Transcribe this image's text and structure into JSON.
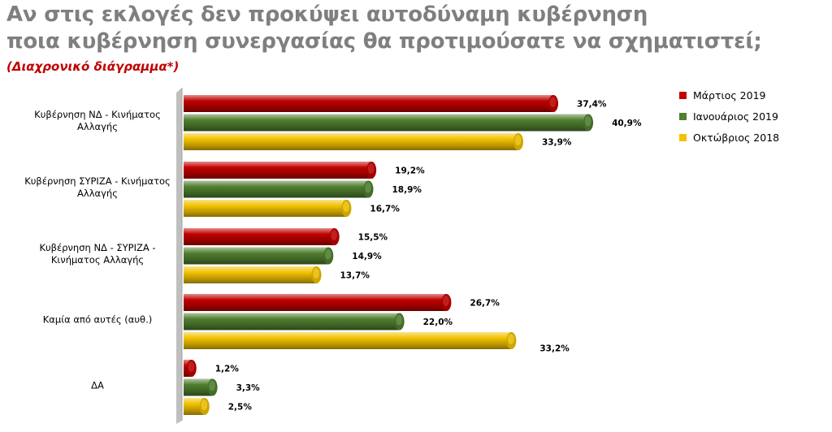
{
  "header": {
    "title_line1": "Αν στις εκλογές δεν προκύψει αυτοδύναμη κυβέρνηση",
    "title_line2": "ποια κυβέρνηση συνεργασίας θα προτιμούσατε να σχηματιστεί;",
    "subtitle": "(Διαχρονικό διάγραμμα*)"
  },
  "chart_data": {
    "type": "bar",
    "orientation": "horizontal",
    "categories": [
      "Κυβέρνηση ΝΔ - Κινήματος Αλλαγής",
      "Κυβέρνηση ΣΥΡΙΖΑ - Κινήματος Αλλαγής",
      "Κυβέρνηση ΝΔ - ΣΥΡΙΖΑ - Κινήματος Αλλαγής",
      "Καμία από αυτές (αυθ.)",
      "ΔΑ"
    ],
    "category_label_lines": [
      [
        "Κυβέρνηση ΝΔ - Κινήματος",
        "Αλλαγής"
      ],
      [
        "Κυβέρνηση ΣΥΡΙΖΑ - Κινήματος",
        "Αλλαγής"
      ],
      [
        "Κυβέρνηση ΝΔ - ΣΥΡΙΖΑ -",
        "Κινήματος Αλλαγής"
      ],
      [
        "Καμία από αυτές (αυθ.)"
      ],
      [
        "ΔΑ"
      ]
    ],
    "series": [
      {
        "name": "Μάρτιος 2019",
        "color": "#c00000",
        "values": [
          37.4,
          19.2,
          15.5,
          26.7,
          1.2
        ],
        "labels": [
          "37,4%",
          "19,2%",
          "15,5%",
          "26,7%",
          "1,2%"
        ]
      },
      {
        "name": "Ιανουάριος 2019",
        "color": "#4f7f2f",
        "values": [
          40.9,
          18.9,
          14.9,
          22.0,
          3.3
        ],
        "labels": [
          "40,9%",
          "18,9%",
          "14,9%",
          "22,0%",
          "3,3%"
        ]
      },
      {
        "name": "Οκτώβριος 2018",
        "color": "#f2c200",
        "values": [
          33.9,
          16.7,
          13.7,
          33.2,
          2.5
        ],
        "labels": [
          "33,9%",
          "16,7%",
          "13,7%",
          "33,2%",
          "2,5%"
        ]
      }
    ],
    "xlim": [
      0,
      45
    ],
    "legend_position": "top-right",
    "grid": false
  }
}
